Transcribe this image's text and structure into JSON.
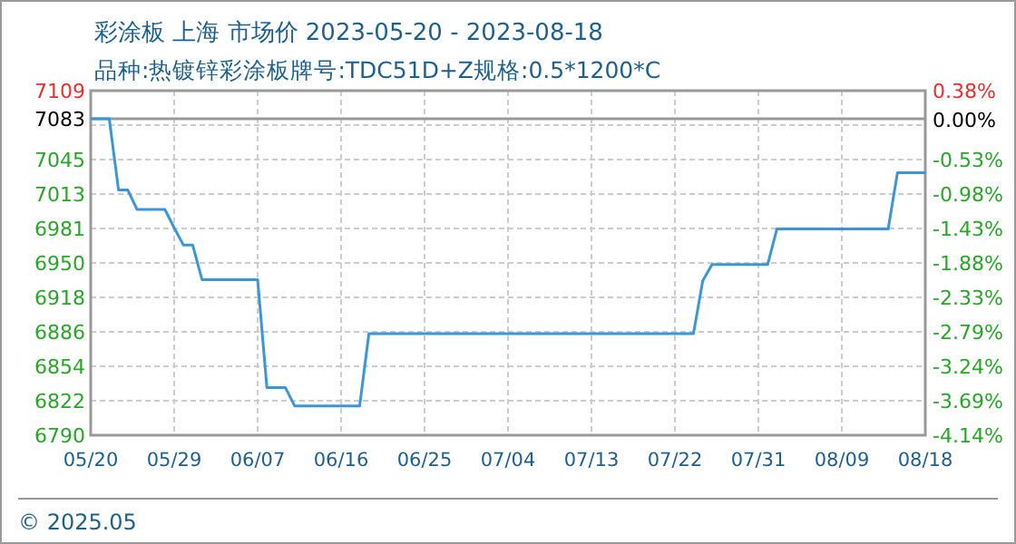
{
  "chart_data": {
    "type": "line",
    "title": "彩涂板 上海 市场价 2023-05-20 - 2023-08-18",
    "subtitle": "品种:热镀锌彩涂板牌号:TDC51D+Z规格:0.5*1200*C",
    "annotations": [
      "© 2025.05"
    ],
    "x": [
      "2023-05-20",
      "2023-05-22",
      "2023-05-23",
      "2023-05-24",
      "2023-05-25",
      "2023-05-28",
      "2023-05-29",
      "2023-05-30",
      "2023-05-31",
      "2023-06-01",
      "2023-06-07",
      "2023-06-08",
      "2023-06-10",
      "2023-06-11",
      "2023-06-18",
      "2023-06-19",
      "2023-07-24",
      "2023-07-25",
      "2023-07-26",
      "2023-08-01",
      "2023-08-02",
      "2023-08-14",
      "2023-08-15",
      "2023-08-18"
    ],
    "series": [
      {
        "color": "#3a96d6",
        "values": [
          7083,
          7083,
          7017,
          7017,
          6999,
          6999,
          6982,
          6966,
          6966,
          6934,
          6934,
          6834,
          6834,
          6817,
          6817,
          6884,
          6884,
          6933,
          6948,
          6948,
          6981,
          6981,
          7033,
          7033
        ]
      }
    ],
    "xlim": [
      "2023-05-20",
      "2023-08-18"
    ],
    "xticks": [
      {
        "value": "2023-05-20",
        "label": "05/20"
      },
      {
        "value": "2023-05-29",
        "label": "05/29"
      },
      {
        "value": "2023-06-07",
        "label": "06/07"
      },
      {
        "value": "2023-06-16",
        "label": "06/16"
      },
      {
        "value": "2023-06-25",
        "label": "06/25"
      },
      {
        "value": "2023-07-04",
        "label": "07/04"
      },
      {
        "value": "2023-07-13",
        "label": "07/13"
      },
      {
        "value": "2023-07-22",
        "label": "07/22"
      },
      {
        "value": "2023-07-31",
        "label": "07/31"
      },
      {
        "value": "2023-08-09",
        "label": "08/09"
      },
      {
        "value": "2023-08-18",
        "label": "08/18"
      }
    ],
    "ylim": [
      6790,
      7109
    ],
    "yticks": [
      {
        "value": 6790,
        "label": "6790"
      },
      {
        "value": 6821.9,
        "label": "6822"
      },
      {
        "value": 6853.8,
        "label": "6854"
      },
      {
        "value": 6885.7,
        "label": "6886"
      },
      {
        "value": 6917.6,
        "label": "6918"
      },
      {
        "value": 6949.5,
        "label": "6950"
      },
      {
        "value": 6981.4,
        "label": "6981"
      },
      {
        "value": 7013.3,
        "label": "7013"
      },
      {
        "value": 7045.2,
        "label": "7045"
      },
      {
        "value": 7077.1,
        "label": null
      },
      {
        "value": 7083,
        "label": "7083"
      },
      {
        "value": 7109,
        "label": "7109"
      }
    ],
    "y2lim": [
      -4.14,
      0.38
    ],
    "y2ticks": [
      {
        "value": -4.14,
        "label": "-4.14%"
      },
      {
        "value": -3.69,
        "label": "-3.69%"
      },
      {
        "value": -3.24,
        "label": "-3.24%"
      },
      {
        "value": -2.79,
        "label": "-2.79%"
      },
      {
        "value": -2.33,
        "label": "-2.33%"
      },
      {
        "value": -1.88,
        "label": "-1.88%"
      },
      {
        "value": -1.43,
        "label": "-1.43%"
      },
      {
        "value": -0.98,
        "label": "-0.98%"
      },
      {
        "value": -0.53,
        "label": "-0.53%"
      },
      {
        "value": 0,
        "label": "0.00%"
      },
      {
        "value": 0.38,
        "label": "0.38%"
      }
    ],
    "ref_lines": [
      {
        "axis": "y",
        "value": 7083,
        "color": "#999999"
      }
    ],
    "grid": true,
    "marker": "none",
    "line_style": "solid"
  }
}
